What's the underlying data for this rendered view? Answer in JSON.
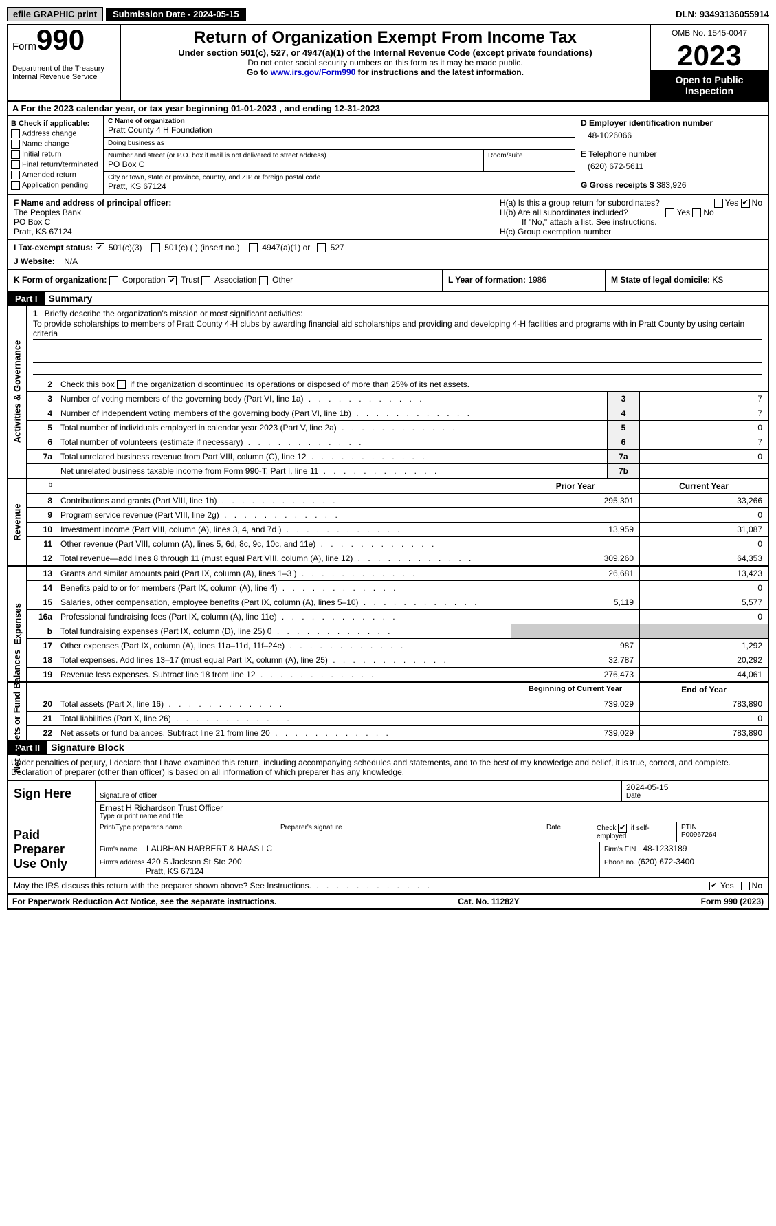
{
  "toolbar": {
    "efile": "efile GRAPHIC print",
    "subdate_label": "Submission Date - 2024-05-15",
    "dln": "DLN: 93493136055914"
  },
  "header": {
    "form_label": "Form",
    "form_num": "990",
    "title": "Return of Organization Exempt From Income Tax",
    "sub": "Under section 501(c), 527, or 4947(a)(1) of the Internal Revenue Code (except private foundations)",
    "note1": "Do not enter social security numbers on this form as it may be made public.",
    "note2_pre": "Go to ",
    "note2_link": "www.irs.gov/Form990",
    "note2_post": " for instructions and the latest information.",
    "dept": "Department of the Treasury",
    "irs": "Internal Revenue Service",
    "omb": "OMB No. 1545-0047",
    "year": "2023",
    "open": "Open to Public Inspection"
  },
  "rowA": "A   For the 2023 calendar year, or tax year beginning 01-01-2023   , and ending 12-31-2023",
  "sectB": {
    "title": "B Check if applicable:",
    "opts": [
      "Address change",
      "Name change",
      "Initial return",
      "Final return/terminated",
      "Amended return",
      "Application pending"
    ]
  },
  "sectC": {
    "name_label": "C Name of organization",
    "name": "Pratt County 4 H Foundation",
    "dba_label": "Doing business as",
    "dba": "",
    "street_label": "Number and street (or P.O. box if mail is not delivered to street address)",
    "street": "PO Box C",
    "room_label": "Room/suite",
    "room": "",
    "city_label": "City or town, state or province, country, and ZIP or foreign postal code",
    "city": "Pratt, KS  67124"
  },
  "sectD": {
    "label": "D Employer identification number",
    "val": "48-1026066"
  },
  "sectE": {
    "label": "E Telephone number",
    "val": "(620) 672-5611"
  },
  "sectG": {
    "label": "G Gross receipts $",
    "val": "383,926"
  },
  "sectF": {
    "label": "F  Name and address of principal officer:",
    "line1": "The Peoples Bank",
    "line2": "PO Box C",
    "line3": "Pratt, KS  67124"
  },
  "sectH": {
    "ha": "H(a)  Is this a group return for subordinates?",
    "hb": "H(b)  Are all subordinates included?",
    "hb_note": "If \"No,\" attach a list. See instructions.",
    "hc": "H(c)  Group exemption number"
  },
  "sectI": {
    "label": "I    Tax-exempt status:",
    "o1": "501(c)(3)",
    "o2": "501(c) (  ) (insert no.)",
    "o3": "4947(a)(1) or",
    "o4": "527"
  },
  "sectJ": {
    "label": "J    Website:",
    "val": "N/A"
  },
  "sectK": {
    "label": "K Form of organization:",
    "o1": "Corporation",
    "o2": "Trust",
    "o3": "Association",
    "o4": "Other"
  },
  "sectL": {
    "label": "L Year of formation:",
    "val": "1986"
  },
  "sectM": {
    "label": "M State of legal domicile:",
    "val": "KS"
  },
  "part1": {
    "hdr": "Part I",
    "title": "Summary"
  },
  "vtabs": {
    "ag": "Activities & Governance",
    "rev": "Revenue",
    "exp": "Expenses",
    "net": "Net Assets or Fund Balances"
  },
  "mission": {
    "label": "Briefly describe the organization's mission or most significant activities:",
    "text": "To provide scholarships to members of Pratt County 4-H clubs by awarding financial aid scholarships and providing and developing 4-H facilities and programs with in Pratt County by using certain criteria"
  },
  "lines_ag": [
    {
      "n": "2",
      "t": "Check this box    if the organization discontinued its operations or disposed of more than 25% of its net assets."
    },
    {
      "n": "3",
      "t": "Number of voting members of the governing body (Part VI, line 1a)",
      "box": "3",
      "v": "7"
    },
    {
      "n": "4",
      "t": "Number of independent voting members of the governing body (Part VI, line 1b)",
      "box": "4",
      "v": "7"
    },
    {
      "n": "5",
      "t": "Total number of individuals employed in calendar year 2023 (Part V, line 2a)",
      "box": "5",
      "v": "0"
    },
    {
      "n": "6",
      "t": "Total number of volunteers (estimate if necessary)",
      "box": "6",
      "v": "7"
    },
    {
      "n": "7a",
      "t": "Total unrelated business revenue from Part VIII, column (C), line 12",
      "box": "7a",
      "v": "0"
    },
    {
      "n": "",
      "t": "Net unrelated business taxable income from Form 990-T, Part I, line 11",
      "box": "7b",
      "v": ""
    }
  ],
  "cols": {
    "py": "Prior Year",
    "cy": "Current Year",
    "bcy": "Beginning of Current Year",
    "eoy": "End of Year"
  },
  "lines_rev": [
    {
      "n": "8",
      "t": "Contributions and grants (Part VIII, line 1h)",
      "py": "295,301",
      "cy": "33,266"
    },
    {
      "n": "9",
      "t": "Program service revenue (Part VIII, line 2g)",
      "py": "",
      "cy": "0"
    },
    {
      "n": "10",
      "t": "Investment income (Part VIII, column (A), lines 3, 4, and 7d )",
      "py": "13,959",
      "cy": "31,087"
    },
    {
      "n": "11",
      "t": "Other revenue (Part VIII, column (A), lines 5, 6d, 8c, 9c, 10c, and 11e)",
      "py": "",
      "cy": "0"
    },
    {
      "n": "12",
      "t": "Total revenue—add lines 8 through 11 (must equal Part VIII, column (A), line 12)",
      "py": "309,260",
      "cy": "64,353"
    }
  ],
  "lines_exp": [
    {
      "n": "13",
      "t": "Grants and similar amounts paid (Part IX, column (A), lines 1–3 )",
      "py": "26,681",
      "cy": "13,423"
    },
    {
      "n": "14",
      "t": "Benefits paid to or for members (Part IX, column (A), line 4)",
      "py": "",
      "cy": "0"
    },
    {
      "n": "15",
      "t": "Salaries, other compensation, employee benefits (Part IX, column (A), lines 5–10)",
      "py": "5,119",
      "cy": "5,577"
    },
    {
      "n": "16a",
      "t": "Professional fundraising fees (Part IX, column (A), line 11e)",
      "py": "",
      "cy": "0"
    },
    {
      "n": "b",
      "t": "Total fundraising expenses (Part IX, column (D), line 25) 0",
      "py": "SHADE",
      "cy": "SHADE"
    },
    {
      "n": "17",
      "t": "Other expenses (Part IX, column (A), lines 11a–11d, 11f–24e)",
      "py": "987",
      "cy": "1,292"
    },
    {
      "n": "18",
      "t": "Total expenses. Add lines 13–17 (must equal Part IX, column (A), line 25)",
      "py": "32,787",
      "cy": "20,292"
    },
    {
      "n": "19",
      "t": "Revenue less expenses. Subtract line 18 from line 12",
      "py": "276,473",
      "cy": "44,061"
    }
  ],
  "lines_net": [
    {
      "n": "20",
      "t": "Total assets (Part X, line 16)",
      "py": "739,029",
      "cy": "783,890"
    },
    {
      "n": "21",
      "t": "Total liabilities (Part X, line 26)",
      "py": "",
      "cy": "0"
    },
    {
      "n": "22",
      "t": "Net assets or fund balances. Subtract line 21 from line 20",
      "py": "739,029",
      "cy": "783,890"
    }
  ],
  "part2": {
    "hdr": "Part II",
    "title": "Signature Block"
  },
  "declaration": "Under penalties of perjury, I declare that I have examined this return, including accompanying schedules and statements, and to the best of my knowledge and belief, it is true, correct, and complete. Declaration of preparer (other than officer) is based on all information of which preparer has any knowledge.",
  "sign": {
    "here": "Sign Here",
    "sig_officer": "Signature of officer",
    "date": "Date",
    "sig_date": "2024-05-15",
    "officer": "Ernest H Richardson  Trust Officer",
    "type_label": "Type or print name and title"
  },
  "paid": {
    "label": "Paid Preparer Use Only",
    "c1": "Print/Type preparer's name",
    "c2": "Preparer's signature",
    "c3": "Date",
    "c4_pre": "Check",
    "c4_post": "if self-employed",
    "c5": "PTIN",
    "ptin": "P00967264",
    "firm_label": "Firm's name",
    "firm": "LAUBHAN HARBERT & HAAS LC",
    "ein_label": "Firm's EIN",
    "ein": "48-1233189",
    "addr_label": "Firm's address",
    "addr1": "420 S Jackson St Ste 200",
    "addr2": "Pratt, KS  67124",
    "phone_label": "Phone no.",
    "phone": "(620) 672-3400"
  },
  "discuss": "May the IRS discuss this return with the preparer shown above? See Instructions.",
  "yes": "Yes",
  "no": "No",
  "footer": {
    "left": "For Paperwork Reduction Act Notice, see the separate instructions.",
    "mid": "Cat. No. 11282Y",
    "right": "Form 990 (2023)"
  }
}
